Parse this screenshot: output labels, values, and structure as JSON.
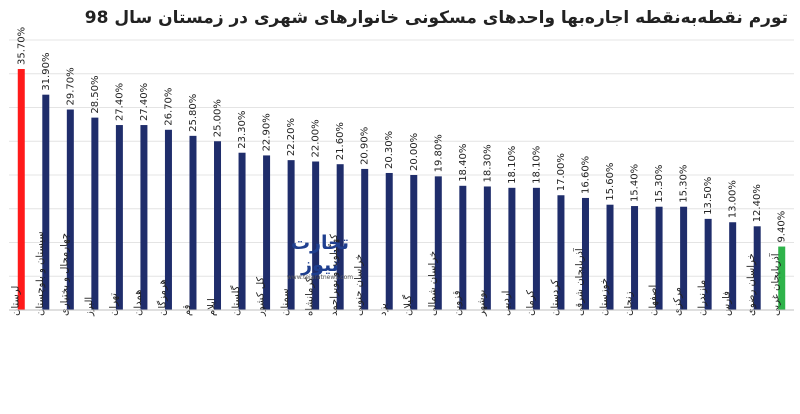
{
  "chart_data": {
    "type": "bar",
    "title": "تورم نقطه‌به‌نقطه اجاره‌بها واحدهای مسکونی خانوارهای شهری در زمستان سال 98",
    "xlabel": "",
    "ylabel": "",
    "ylim": [
      0,
      40
    ],
    "grid": true,
    "categories": [
      "لرستان",
      "سیستان و بلوچستان",
      "چهارمحال و بختیاری",
      "البرز",
      "تهران",
      "همدان",
      "هرمزگان",
      "قم",
      "ایلام",
      "گلستان",
      "کل کشور",
      "سمنان",
      "کرمانشاه",
      "کهگیلویه و بویراحمد",
      "خراسان جنوبی",
      "یزد",
      "گیلان",
      "خراسان شمالی",
      "قزوین",
      "بوشهر",
      "اردبیل",
      "کرمان",
      "کردستان",
      "آذربایجان شرقی",
      "خوزستان",
      "زنجان",
      "اصفهان",
      "مرکزی",
      "مازندران",
      "فارس",
      "خراسان رضوی",
      "آذربایجان غربی"
    ],
    "values": [
      35.7,
      31.9,
      29.7,
      28.5,
      27.4,
      27.4,
      26.7,
      25.8,
      25.0,
      23.3,
      22.9,
      22.2,
      22.0,
      21.6,
      20.9,
      20.3,
      20.0,
      19.8,
      18.4,
      18.3,
      18.1,
      18.1,
      17.0,
      16.6,
      15.6,
      15.4,
      15.3,
      15.3,
      13.5,
      13.0,
      12.4,
      9.4
    ],
    "value_labels": [
      "35.70%",
      "31.90%",
      "29.70%",
      "28.50%",
      "27.40%",
      "27.40%",
      "26.70%",
      "25.80%",
      "25.00%",
      "23.30%",
      "22.90%",
      "22.20%",
      "22.00%",
      "21.60%",
      "20.90%",
      "20.30%",
      "20.00%",
      "19.80%",
      "18.40%",
      "18.30%",
      "18.10%",
      "18.10%",
      "17.00%",
      "16.60%",
      "15.60%",
      "15.40%",
      "15.30%",
      "15.30%",
      "13.50%",
      "13.00%",
      "12.40%",
      "9.40%"
    ],
    "colors": {
      "default": "#1f2d6b",
      "highest": "#ff1a1a",
      "lowest": "#2eb34a",
      "grid": "#e4e4e4"
    }
  },
  "watermark": {
    "text": "تجارت نیوز",
    "url": "www.tejaratnews.com"
  }
}
